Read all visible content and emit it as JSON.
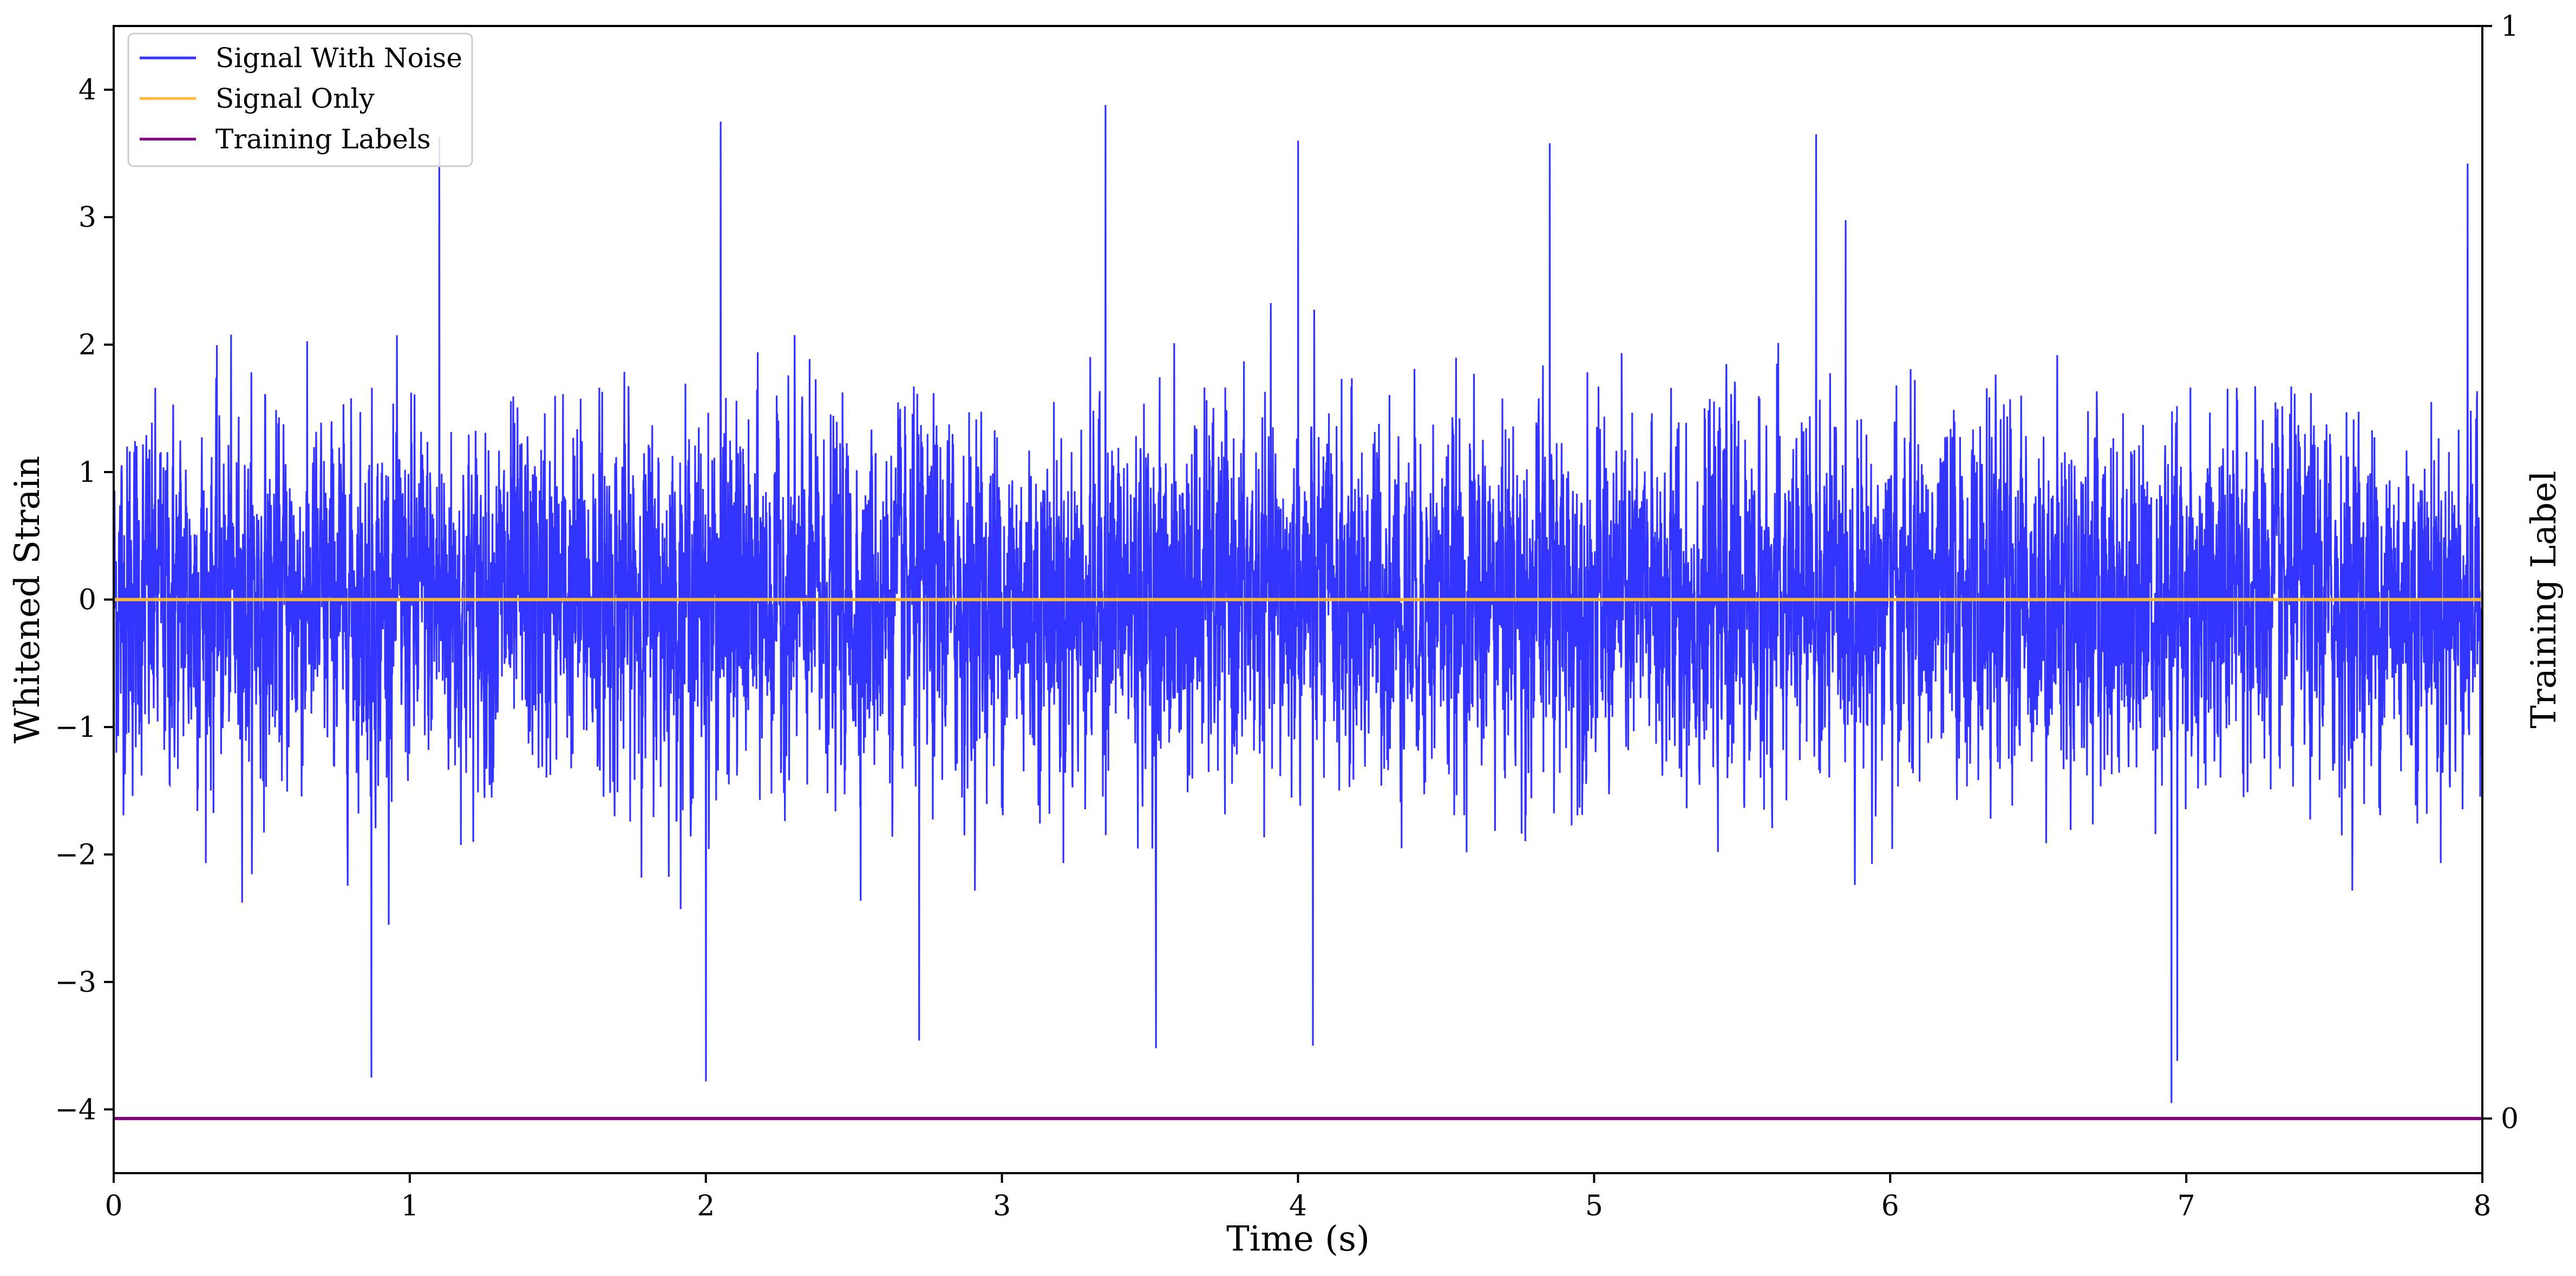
{
  "chart_data": {
    "type": "line",
    "title": "",
    "xlabel": "Time (s)",
    "ylabel": "Whitened Strain",
    "ylabel_right": "Training Label",
    "xlim": [
      0,
      8
    ],
    "ylim": [
      -4.5,
      4.5
    ],
    "ylim_right": [
      -0.05,
      1.0
    ],
    "x_ticks": [
      0,
      1,
      2,
      3,
      4,
      5,
      6,
      7,
      8
    ],
    "x_tick_labels": [
      "0",
      "1",
      "2",
      "3",
      "4",
      "5",
      "6",
      "7",
      "8"
    ],
    "y_ticks": [
      -4,
      -3,
      -2,
      -1,
      0,
      1,
      2,
      3,
      4
    ],
    "y_tick_labels": [
      "−4",
      "−3",
      "−2",
      "−1",
      "0",
      "1",
      "2",
      "3",
      "4"
    ],
    "y_right_ticks": [
      0,
      1
    ],
    "y_right_tick_labels": [
      "0",
      "1"
    ],
    "grid": false,
    "legend_position": "upper-left",
    "series": [
      {
        "name": "Signal With Noise",
        "color": "#3333ff",
        "description_values": {
          "x_range": [
            0,
            8
          ],
          "typical_band": [
            -1.5,
            1.5
          ],
          "max": 3.9,
          "min": -3.95,
          "notable_peaks": [
            {
              "x": 3.35,
              "y": 3.88
            },
            {
              "x": 2.05,
              "y": 3.75
            },
            {
              "x": 5.75,
              "y": 3.65
            },
            {
              "x": 1.1,
              "y": 3.63
            },
            {
              "x": 4.0,
              "y": 3.6
            },
            {
              "x": 4.85,
              "y": 3.58
            },
            {
              "x": 7.95,
              "y": 3.42
            },
            {
              "x": 6.95,
              "y": -3.95
            },
            {
              "x": 2.0,
              "y": -3.78
            },
            {
              "x": 0.87,
              "y": -3.75
            },
            {
              "x": 6.97,
              "y": -3.62
            },
            {
              "x": 3.52,
              "y": -3.52
            },
            {
              "x": 4.05,
              "y": -3.5
            },
            {
              "x": 2.72,
              "y": -3.46
            }
          ]
        }
      },
      {
        "name": "Signal Only",
        "color": "#ffb833",
        "x": [
          0,
          8
        ],
        "y": [
          0,
          0
        ]
      },
      {
        "name": "Training Labels",
        "color": "#800080",
        "axis": "right",
        "x": [
          0,
          8
        ],
        "y": [
          0,
          0
        ]
      }
    ]
  }
}
